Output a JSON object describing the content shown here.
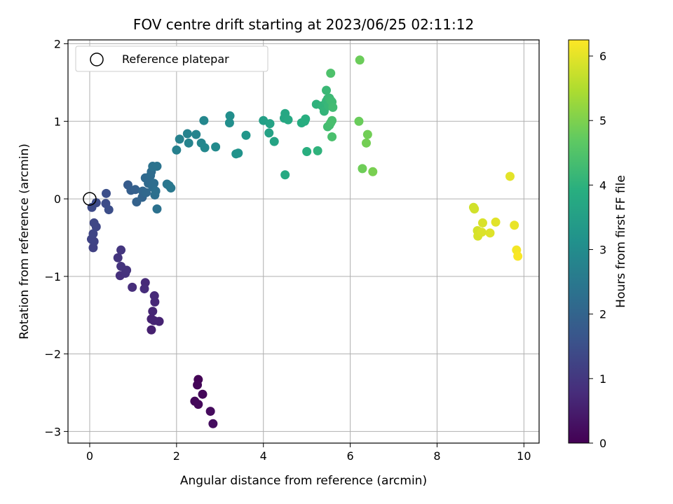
{
  "chart_data": {
    "type": "scatter",
    "title": "FOV centre drift starting at 2023/06/25 02:11:12",
    "xlabel": "Angular distance from reference (arcmin)",
    "ylabel": "Rotation from reference (arcmin)",
    "xlim": [
      -0.5,
      10.35
    ],
    "ylim": [
      -3.15,
      2.05
    ],
    "xticks": [
      0,
      2,
      4,
      6,
      8,
      10
    ],
    "yticks": [
      -3,
      -2,
      -1,
      0,
      1,
      2
    ],
    "grid": true,
    "legend": {
      "placement": "top-left",
      "entries": [
        "Reference platepar"
      ]
    },
    "reference_point": {
      "x": 0,
      "y": 0
    },
    "colorbar": {
      "label": "Hours from first FF file",
      "colormap": "viridis",
      "range": [
        0,
        6.25
      ],
      "ticks": [
        0,
        1,
        2,
        3,
        4,
        5,
        6
      ]
    },
    "points": [
      [
        2.5,
        -2.33,
        0.05
      ],
      [
        2.48,
        -2.4,
        0.08
      ],
      [
        2.6,
        -2.52,
        0.1
      ],
      [
        2.42,
        -2.61,
        0.12
      ],
      [
        2.5,
        -2.65,
        0.15
      ],
      [
        2.78,
        -2.74,
        0.18
      ],
      [
        2.84,
        -2.9,
        0.22
      ],
      [
        1.42,
        -1.69,
        0.55
      ],
      [
        1.42,
        -1.55,
        0.58
      ],
      [
        1.6,
        -1.58,
        0.6
      ],
      [
        1.48,
        -1.57,
        0.62
      ],
      [
        1.45,
        -1.45,
        0.65
      ],
      [
        1.5,
        -1.33,
        0.7
      ],
      [
        1.49,
        -1.25,
        0.72
      ],
      [
        1.28,
        -1.08,
        0.75
      ],
      [
        1.26,
        -1.16,
        0.78
      ],
      [
        0.98,
        -1.14,
        0.8
      ],
      [
        0.7,
        -0.99,
        0.85
      ],
      [
        0.82,
        -0.96,
        0.88
      ],
      [
        0.85,
        -0.92,
        0.9
      ],
      [
        0.72,
        -0.87,
        0.92
      ],
      [
        0.65,
        -0.76,
        0.95
      ],
      [
        0.72,
        -0.66,
        0.98
      ],
      [
        0.08,
        -0.63,
        1.2
      ],
      [
        0.1,
        -0.55,
        1.22
      ],
      [
        0.04,
        -0.52,
        1.25
      ],
      [
        0.08,
        -0.45,
        1.28
      ],
      [
        0.15,
        -0.36,
        1.3
      ],
      [
        0.1,
        -0.31,
        1.32
      ],
      [
        0.05,
        -0.11,
        1.4
      ],
      [
        0.15,
        -0.05,
        1.42
      ],
      [
        0.37,
        -0.06,
        1.45
      ],
      [
        0.44,
        -0.14,
        1.48
      ],
      [
        0.38,
        0.07,
        1.5
      ],
      [
        0.88,
        0.18,
        1.8
      ],
      [
        0.95,
        0.11,
        1.85
      ],
      [
        1.05,
        0.12,
        1.9
      ],
      [
        1.08,
        -0.04,
        1.95
      ],
      [
        1.21,
        0.02,
        2.0
      ],
      [
        1.22,
        0.1,
        2.05
      ],
      [
        1.3,
        0.08,
        2.1
      ],
      [
        1.28,
        0.27,
        2.12
      ],
      [
        1.35,
        0.2,
        2.15
      ],
      [
        1.4,
        0.3,
        2.18
      ],
      [
        1.42,
        0.35,
        2.2
      ],
      [
        1.45,
        0.15,
        2.22
      ],
      [
        1.48,
        0.2,
        2.25
      ],
      [
        1.5,
        0.05,
        2.28
      ],
      [
        1.52,
        0.1,
        2.3
      ],
      [
        1.55,
        -0.13,
        2.32
      ],
      [
        1.45,
        0.42,
        2.35
      ],
      [
        1.55,
        0.42,
        2.38
      ],
      [
        1.78,
        0.19,
        2.45
      ],
      [
        1.83,
        0.17,
        2.48
      ],
      [
        1.87,
        0.14,
        2.5
      ],
      [
        2.0,
        0.63,
        2.7
      ],
      [
        2.07,
        0.77,
        2.72
      ],
      [
        2.25,
        0.84,
        2.75
      ],
      [
        2.28,
        0.72,
        2.78
      ],
      [
        2.45,
        0.83,
        2.8
      ],
      [
        2.57,
        0.72,
        2.85
      ],
      [
        2.63,
        1.01,
        2.88
      ],
      [
        2.65,
        0.66,
        2.9
      ],
      [
        2.9,
        0.67,
        2.95
      ],
      [
        3.23,
        1.07,
        3.05
      ],
      [
        3.22,
        0.98,
        3.08
      ],
      [
        3.37,
        0.58,
        3.15
      ],
      [
        3.42,
        0.59,
        3.18
      ],
      [
        3.6,
        0.82,
        3.25
      ],
      [
        4.0,
        1.01,
        3.5
      ],
      [
        4.13,
        0.85,
        3.55
      ],
      [
        4.15,
        0.97,
        3.58
      ],
      [
        4.25,
        0.74,
        3.62
      ],
      [
        4.48,
        1.04,
        3.7
      ],
      [
        4.5,
        1.1,
        3.72
      ],
      [
        4.57,
        1.02,
        3.75
      ],
      [
        4.5,
        0.31,
        3.78
      ],
      [
        4.88,
        0.98,
        3.85
      ],
      [
        4.95,
        1.0,
        3.88
      ],
      [
        4.97,
        1.03,
        3.9
      ],
      [
        5.0,
        0.61,
        3.92
      ],
      [
        5.22,
        1.22,
        4.0
      ],
      [
        5.25,
        0.62,
        4.02
      ],
      [
        5.35,
        1.2,
        4.05
      ],
      [
        5.4,
        1.13,
        4.08
      ],
      [
        5.45,
        1.26,
        4.1
      ],
      [
        5.48,
        1.29,
        4.12
      ],
      [
        5.5,
        1.2,
        4.15
      ],
      [
        5.45,
        1.4,
        4.18
      ],
      [
        5.52,
        1.3,
        4.2
      ],
      [
        5.55,
        1.27,
        4.22
      ],
      [
        5.58,
        1.25,
        4.25
      ],
      [
        5.6,
        1.18,
        4.28
      ],
      [
        5.48,
        0.93,
        4.3
      ],
      [
        5.52,
        0.95,
        4.32
      ],
      [
        5.55,
        0.98,
        4.35
      ],
      [
        5.58,
        1.01,
        4.38
      ],
      [
        5.58,
        0.8,
        4.4
      ],
      [
        5.55,
        1.62,
        4.45
      ],
      [
        6.2,
        1.0,
        4.8
      ],
      [
        6.22,
        1.79,
        4.82
      ],
      [
        6.28,
        0.39,
        4.85
      ],
      [
        6.4,
        0.83,
        4.88
      ],
      [
        6.37,
        0.72,
        4.9
      ],
      [
        6.52,
        0.35,
        4.95
      ],
      [
        8.84,
        -0.11,
        5.8
      ],
      [
        8.86,
        -0.13,
        5.82
      ],
      [
        8.93,
        -0.41,
        5.85
      ],
      [
        8.94,
        -0.48,
        5.88
      ],
      [
        9.05,
        -0.31,
        5.9
      ],
      [
        9.03,
        -0.43,
        5.92
      ],
      [
        9.22,
        -0.44,
        5.95
      ],
      [
        9.35,
        -0.3,
        5.98
      ],
      [
        9.68,
        0.29,
        6.0
      ],
      [
        9.78,
        -0.34,
        6.05
      ],
      [
        9.83,
        -0.66,
        6.15
      ],
      [
        9.86,
        -0.74,
        6.2
      ]
    ]
  }
}
